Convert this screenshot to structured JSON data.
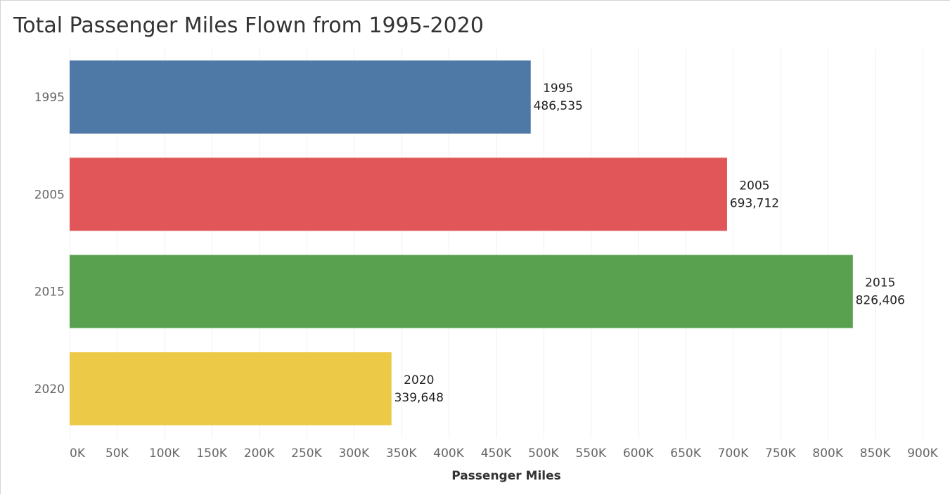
{
  "chart_data": {
    "type": "bar",
    "orientation": "horizontal",
    "title": "Total Passenger Miles Flown from 1995-2020",
    "xlabel": "Passenger Miles",
    "ylabel": "",
    "categories": [
      "1995",
      "2005",
      "2015",
      "2020"
    ],
    "values": [
      486535,
      693712,
      826406,
      339648
    ],
    "data_labels": [
      {
        "line1": "1995",
        "line2": "486,535"
      },
      {
        "line1": "2005",
        "line2": "693,712"
      },
      {
        "line1": "2015",
        "line2": "826,406"
      },
      {
        "line1": "2020",
        "line2": "339,648"
      }
    ],
    "colors": [
      "#4e79a7",
      "#e15759",
      "#59a14f",
      "#edc948"
    ],
    "xlim": [
      0,
      900000
    ],
    "x_ticks": [
      0,
      50000,
      100000,
      150000,
      200000,
      250000,
      300000,
      350000,
      400000,
      450000,
      500000,
      550000,
      600000,
      650000,
      700000,
      750000,
      800000,
      850000,
      900000
    ],
    "x_tick_labels": [
      "0K",
      "50K",
      "100K",
      "150K",
      "200K",
      "250K",
      "300K",
      "350K",
      "400K",
      "450K",
      "500K",
      "550K",
      "600K",
      "650K",
      "700K",
      "750K",
      "800K",
      "850K",
      "900K"
    ],
    "grid": true,
    "legend": "none"
  }
}
